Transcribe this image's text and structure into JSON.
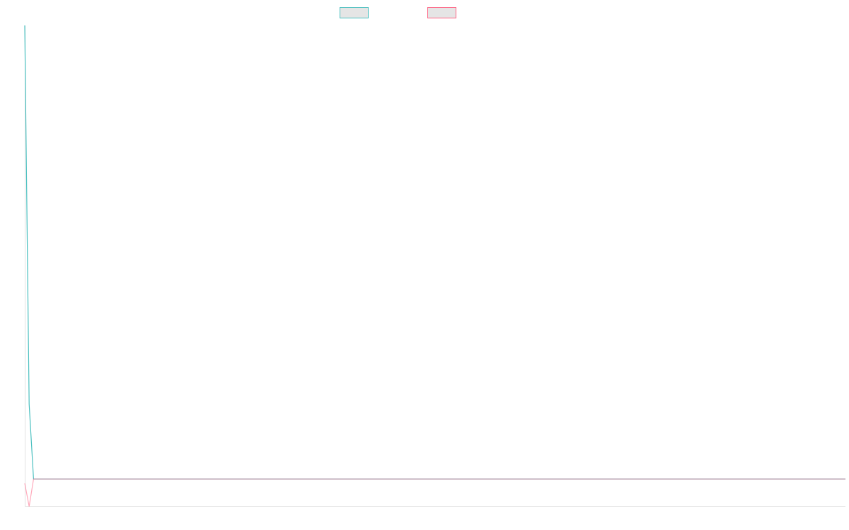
{
  "chart_data": {
    "type": "line",
    "title": "",
    "xlabel": "",
    "ylabel": "",
    "ylim": [
      0,
      100
    ],
    "grid": false,
    "legend_placement": "top",
    "series": [
      {
        "color": "#4bc0c0",
        "values": [
          100,
          21.2,
          5.6,
          5.6,
          5.6,
          5.6,
          5.6,
          5.6,
          5.6,
          5.6,
          5.6,
          5.6,
          5.6,
          5.6,
          5.6,
          5.6,
          5.6,
          5.6,
          5.6,
          5.6,
          5.6,
          5.6,
          5.6,
          5.6,
          5.6,
          5.6,
          5.6,
          5.6,
          5.6,
          5.6,
          5.6,
          5.6,
          5.6,
          5.6,
          5.6,
          5.6,
          5.6,
          5.6,
          5.6,
          5.6,
          5.6,
          5.6,
          5.6,
          5.6,
          5.6,
          5.6,
          5.6,
          5.6,
          5.6,
          5.6,
          5.6,
          5.6,
          5.6,
          5.6,
          5.6,
          5.6,
          5.6,
          5.6,
          5.6,
          5.6,
          5.6,
          5.6,
          5.6,
          5.6,
          5.6,
          5.6,
          5.6,
          5.6,
          5.6,
          5.6,
          5.6,
          5.6,
          5.6,
          5.6,
          5.6,
          5.6,
          5.6,
          5.6,
          5.6,
          5.6,
          5.6,
          5.6,
          5.6,
          5.6,
          5.6,
          5.6,
          5.6,
          5.6,
          5.6,
          5.6,
          5.6,
          5.6,
          5.6,
          5.6,
          5.6,
          5.6,
          5.6,
          5.6,
          5.6,
          5.6,
          5.6,
          5.6,
          5.6,
          5.6,
          5.6,
          5.6,
          5.6,
          5.6,
          5.6,
          5.6,
          5.6,
          5.6,
          5.6,
          5.6,
          5.6,
          5.6,
          5.6,
          5.6,
          5.6,
          5.6,
          5.6,
          5.6,
          5.6,
          5.6,
          5.6,
          5.6,
          5.6,
          5.6,
          5.6,
          5.6,
          5.6,
          5.6,
          5.6,
          5.6,
          5.6,
          5.6,
          5.6,
          5.6,
          5.6,
          5.6,
          5.6,
          5.6,
          5.6,
          5.6,
          5.6,
          5.6,
          5.6,
          5.6,
          5.6,
          5.6,
          5.6,
          5.6,
          5.6,
          5.6,
          5.6,
          5.6,
          5.6,
          5.6,
          5.6,
          5.6,
          5.6,
          5.6,
          5.6,
          5.6,
          5.6,
          5.6,
          5.6,
          5.6,
          5.6,
          5.6,
          5.6,
          5.6,
          5.6,
          5.6,
          5.6,
          5.6,
          5.6,
          5.6,
          5.6,
          5.6,
          5.6,
          5.6,
          5.6,
          5.6,
          5.6,
          5.6,
          5.6,
          5.6
        ]
      },
      {
        "color": "#ff6384",
        "values": [
          4.7,
          -0.1,
          5.6,
          5.6,
          5.6,
          5.6,
          5.6,
          5.6,
          5.6,
          5.6,
          5.6,
          5.6,
          5.6,
          5.6,
          5.6,
          5.6,
          5.6,
          5.6,
          5.6,
          5.6,
          5.6,
          5.6,
          5.6,
          5.6,
          5.6,
          5.6,
          5.6,
          5.6,
          5.6,
          5.6,
          5.6,
          5.6,
          5.6,
          5.6,
          5.6,
          5.6,
          5.6,
          5.6,
          5.6,
          5.6,
          5.6,
          5.6,
          5.6,
          5.6,
          5.6,
          5.6,
          5.6,
          5.6,
          5.6,
          5.6,
          5.6,
          5.6,
          5.6,
          5.6,
          5.6,
          5.6,
          5.6,
          5.6,
          5.6,
          5.6,
          5.6,
          5.6,
          5.6,
          5.6,
          5.6,
          5.6,
          5.6,
          5.6,
          5.6,
          5.6,
          5.6,
          5.6,
          5.6,
          5.6,
          5.6,
          5.6,
          5.6,
          5.6,
          5.6,
          5.6,
          5.6,
          5.6,
          5.6,
          5.6,
          5.6,
          5.6,
          5.6,
          5.6,
          5.6,
          5.6,
          5.6,
          5.6,
          5.6,
          5.6,
          5.6,
          5.6,
          5.6,
          5.6,
          5.6,
          5.6,
          5.6,
          5.6,
          5.6,
          5.6,
          5.6,
          5.6,
          5.6,
          5.6,
          5.6,
          5.6,
          5.6,
          5.6,
          5.6,
          5.6,
          5.6,
          5.6,
          5.6,
          5.6,
          5.6,
          5.6,
          5.6,
          5.6,
          5.6,
          5.6,
          5.6,
          5.6,
          5.6,
          5.6,
          5.6,
          5.6,
          5.6,
          5.6,
          5.6,
          5.6,
          5.6,
          5.6,
          5.6,
          5.6,
          5.6,
          5.6,
          5.6,
          5.6,
          5.6,
          5.6,
          5.6,
          5.6,
          5.6,
          5.6,
          5.6,
          5.6,
          5.6,
          5.6,
          5.6,
          5.6,
          5.6,
          5.6,
          5.6,
          5.6,
          5.6,
          5.6,
          5.6,
          5.6,
          5.6,
          5.6,
          5.6,
          5.6,
          5.6,
          5.6,
          5.6,
          5.6,
          5.6,
          5.6,
          5.6,
          5.6,
          5.6,
          5.6,
          5.6,
          5.6,
          5.6,
          5.6,
          5.6,
          5.6,
          5.6,
          5.6,
          5.6,
          5.6,
          5.6,
          5.6
        ]
      }
    ]
  }
}
